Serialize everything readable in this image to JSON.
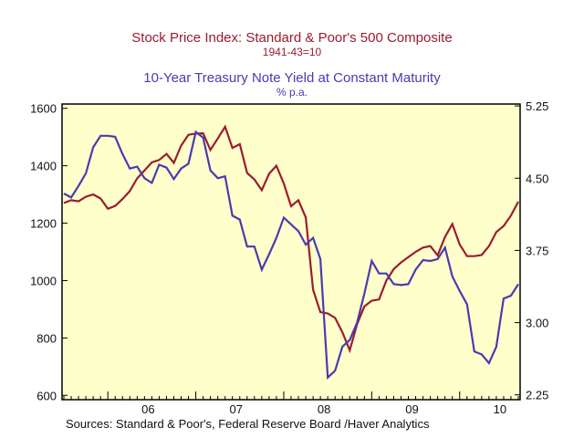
{
  "title": "Stock Price Index: Standard & Poor's 500 Composite",
  "subtitle": "1941-43=10",
  "title2": "10-Year Treasury Note Yield at Constant Maturity",
  "subtitle2": "% p.a.",
  "source": "Sources:  Standard & Poor's, Federal Reserve Board /Haver Analytics",
  "colors": {
    "sp500": "#9b1c2e",
    "yield": "#4a3bb0",
    "plot_bg": "#ffffcc"
  },
  "chart_data": {
    "type": "line",
    "title": "Stock Price Index: Standard & Poor's 500 Composite",
    "subtitle": "1941-43=10",
    "title2": "10-Year Treasury Note Yield at Constant Maturity",
    "subtitle2": "% p.a.",
    "x_start_month": "2005-07",
    "x_end_month": "2010-10",
    "x_tick_labels": [
      "06",
      "07",
      "08",
      "09",
      "10"
    ],
    "left_axis": {
      "ylim": [
        585,
        1615
      ],
      "ticks": [
        "1600",
        "1400",
        "1200",
        "1000",
        "800",
        "600"
      ]
    },
    "right_axis": {
      "ylim": [
        2.2,
        5.27
      ],
      "ticks": [
        "5.25",
        "4.50",
        "3.75",
        "3.00",
        "2.25"
      ]
    },
    "grid": false,
    "series": [
      {
        "axis": "left",
        "values": [
          1270,
          1280,
          1276,
          1292,
          1300,
          1286,
          1250,
          1260,
          1284,
          1312,
          1356,
          1384,
          1412,
          1420,
          1441,
          1410,
          1470,
          1508,
          1512,
          1513,
          1455,
          1495,
          1536,
          1462,
          1475,
          1375,
          1352,
          1315,
          1372,
          1400,
          1338,
          1259,
          1280,
          1220,
          968,
          890,
          885,
          870,
          820,
          757,
          848,
          910,
          930,
          934,
          1000,
          1040,
          1063,
          1082,
          1100,
          1115,
          1120,
          1088,
          1152,
          1197,
          1126,
          1085,
          1085,
          1089,
          1120,
          1169,
          1190,
          1227,
          1275
        ]
      },
      {
        "axis": "right",
        "values": [
          4.34,
          4.3,
          4.42,
          4.55,
          4.82,
          4.94,
          4.94,
          4.93,
          4.75,
          4.6,
          4.62,
          4.5,
          4.45,
          4.64,
          4.61,
          4.49,
          4.6,
          4.65,
          4.98,
          4.92,
          4.58,
          4.5,
          4.52,
          4.11,
          4.07,
          3.79,
          3.79,
          3.55,
          3.71,
          3.88,
          4.09,
          4.02,
          3.95,
          3.81,
          3.88,
          3.66,
          2.43,
          2.5,
          2.75,
          2.82,
          3.0,
          3.3,
          3.64,
          3.51,
          3.51,
          3.4,
          3.39,
          3.4,
          3.55,
          3.65,
          3.64,
          3.66,
          3.78,
          3.48,
          3.33,
          3.19,
          2.7,
          2.67,
          2.58,
          2.75,
          3.25,
          3.28,
          3.4
        ]
      }
    ]
  }
}
